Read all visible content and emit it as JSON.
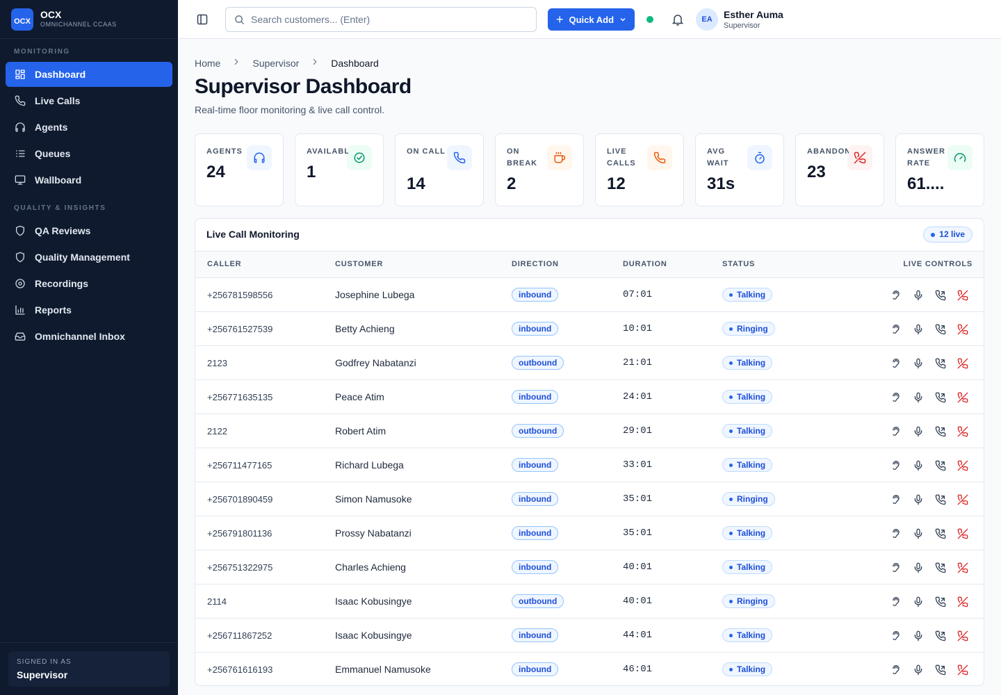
{
  "brand": {
    "logo": "OCX",
    "name": "OCX",
    "tagline": "OMNICHANNEL CCAAS"
  },
  "nav": [
    {
      "title": "MONITORING",
      "items": [
        "Dashboard",
        "Live Calls",
        "Agents",
        "Queues",
        "Wallboard"
      ]
    },
    {
      "title": "QUALITY & INSIGHTS",
      "items": [
        "QA Reviews",
        "Quality Management",
        "Recordings",
        "Reports",
        "Omnichannel Inbox"
      ]
    }
  ],
  "signed_in": {
    "label": "SIGNED IN AS",
    "role": "Supervisor"
  },
  "header": {
    "search_placeholder": "Search customers... (Enter)",
    "quick_add": "Quick Add",
    "user": {
      "initials": "EA",
      "name": "Esther Auma",
      "role": "Supervisor"
    }
  },
  "breadcrumb": [
    "Home",
    "Supervisor",
    "Dashboard"
  ],
  "page": {
    "title": "Supervisor Dashboard",
    "subtitle": "Real-time floor monitoring & live call control."
  },
  "stats": [
    {
      "label": "AGENTS",
      "value": "24"
    },
    {
      "label": "AVAILABLE",
      "value": "1"
    },
    {
      "label": "ON CALL",
      "value": "14"
    },
    {
      "label": "ON BREAK",
      "value": "2"
    },
    {
      "label": "LIVE CALLS",
      "value": "12"
    },
    {
      "label": "AVG WAIT",
      "value": "31s"
    },
    {
      "label": "ABANDON",
      "value": "23"
    },
    {
      "label": "ANSWER RATE",
      "value": "61...."
    }
  ],
  "table": {
    "title": "Live Call Monitoring",
    "badge": "12 live",
    "columns": [
      "CALLER",
      "CUSTOMER",
      "DIRECTION",
      "DURATION",
      "STATUS",
      "LIVE CONTROLS"
    ],
    "rows": [
      [
        "+256781598556",
        "Josephine Lubega",
        "inbound",
        "07:01",
        "Talking"
      ],
      [
        "+256761527539",
        "Betty Achieng",
        "inbound",
        "10:01",
        "Ringing"
      ],
      [
        "2123",
        "Godfrey Nabatanzi",
        "outbound",
        "21:01",
        "Talking"
      ],
      [
        "+256771635135",
        "Peace Atim",
        "inbound",
        "24:01",
        "Talking"
      ],
      [
        "2122",
        "Robert Atim",
        "outbound",
        "29:01",
        "Talking"
      ],
      [
        "+256711477165",
        "Richard Lubega",
        "inbound",
        "33:01",
        "Talking"
      ],
      [
        "+256701890459",
        "Simon Namusoke",
        "inbound",
        "35:01",
        "Ringing"
      ],
      [
        "+256791801136",
        "Prossy Nabatanzi",
        "inbound",
        "35:01",
        "Talking"
      ],
      [
        "+256751322975",
        "Charles Achieng",
        "inbound",
        "40:01",
        "Talking"
      ],
      [
        "2114",
        "Isaac Kobusingye",
        "outbound",
        "40:01",
        "Ringing"
      ],
      [
        "+256711867252",
        "Isaac Kobusingye",
        "inbound",
        "44:01",
        "Talking"
      ],
      [
        "+256761616193",
        "Emmanuel Namusoke",
        "inbound",
        "46:01",
        "Talking"
      ]
    ]
  }
}
